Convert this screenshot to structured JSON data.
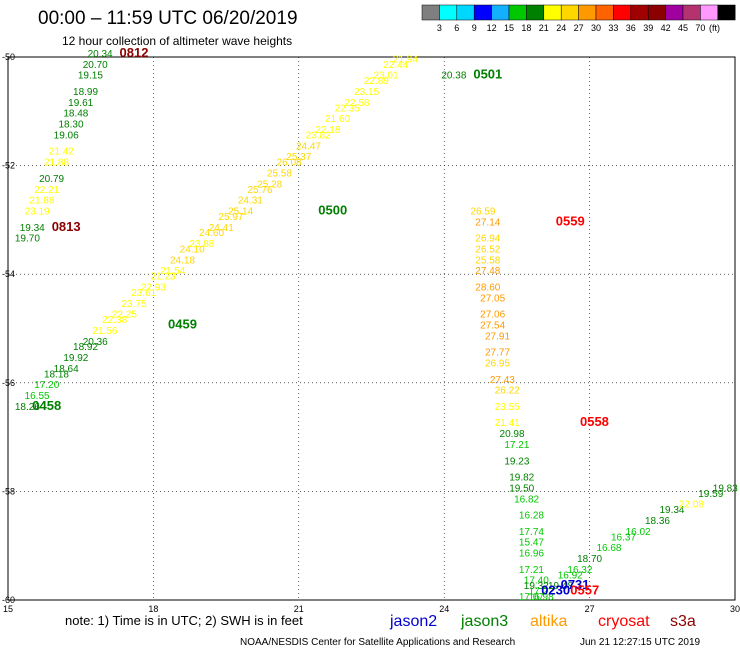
{
  "header": {
    "title": "00:00 – 11:59 UTC 06/20/2019",
    "subtitle": "12 hour collection of altimeter wave heights"
  },
  "colorbar": {
    "colors": [
      "#7f7f7f",
      "#00ffff",
      "#00d7ff",
      "#0000ff",
      "#14b0ff",
      "#00c800",
      "#008000",
      "#ffff00",
      "#ffd700",
      "#ff9900",
      "#ff6200",
      "#ff0000",
      "#a00000",
      "#8b0000",
      "#a000a0",
      "#b4326e",
      "#ff99ff",
      "#000000"
    ],
    "labels": [
      "3",
      "6",
      "9",
      "12",
      "15",
      "18",
      "21",
      "24",
      "27",
      "30",
      "33",
      "36",
      "39",
      "42",
      "45",
      "70"
    ],
    "unit": "(ft)"
  },
  "chart_data": {
    "type": "scatter",
    "xlim": [
      15,
      30
    ],
    "ylim": [
      -60,
      -50
    ],
    "x_ticks": [
      "15",
      "18",
      "21",
      "24",
      "27",
      "30"
    ],
    "y_ticks": [
      "-50",
      "-52",
      "-54",
      "-56",
      "-58",
      "-60"
    ],
    "grid": true,
    "legend": [
      {
        "name": "jason2",
        "color": "#0000cc"
      },
      {
        "name": "jason3",
        "color": "#008000"
      },
      {
        "name": "altika",
        "color": "#ff9900"
      },
      {
        "name": "cryosat",
        "color": "#ff0000"
      },
      {
        "name": "s3a",
        "color": "#8b0000"
      }
    ],
    "times": [
      {
        "label": "0812",
        "x": 17.6,
        "y": -50.0,
        "color": "#8b0000"
      },
      {
        "label": "0813",
        "x": 16.2,
        "y": -53.2,
        "color": "#8b0000"
      },
      {
        "label": "0501",
        "x": 24.9,
        "y": -50.4,
        "color": "#008000"
      },
      {
        "label": "0500",
        "x": 21.7,
        "y": -52.9,
        "color": "#008000"
      },
      {
        "label": "0459",
        "x": 18.6,
        "y": -55.0,
        "color": "#008000"
      },
      {
        "label": "0458",
        "x": 15.8,
        "y": -56.5,
        "color": "#008000"
      },
      {
        "label": "0559",
        "x": 26.6,
        "y": -53.1,
        "color": "#ff0000"
      },
      {
        "label": "0558",
        "x": 27.1,
        "y": -56.8,
        "color": "#ff0000"
      },
      {
        "label": "0731",
        "x": 26.7,
        "y": -59.8,
        "color": "#0000cc"
      },
      {
        "label": "0230",
        "x": 26.3,
        "y": -59.9,
        "color": "#0000cc"
      },
      {
        "label": "0557",
        "x": 26.9,
        "y": -59.9,
        "color": "#ff0000"
      }
    ],
    "points": [
      {
        "x": 16.9,
        "y": -50.0,
        "v": "20.34"
      },
      {
        "x": 16.8,
        "y": -50.2,
        "v": "20.70"
      },
      {
        "x": 16.7,
        "y": -50.4,
        "v": "19.15"
      },
      {
        "x": 16.6,
        "y": -50.7,
        "v": "18.99"
      },
      {
        "x": 16.5,
        "y": -50.9,
        "v": "19.61"
      },
      {
        "x": 16.4,
        "y": -51.1,
        "v": "18.48"
      },
      {
        "x": 16.3,
        "y": -51.3,
        "v": "18.30"
      },
      {
        "x": 16.2,
        "y": -51.5,
        "v": "19.06"
      },
      {
        "x": 16.1,
        "y": -51.8,
        "v": "21.42"
      },
      {
        "x": 16.0,
        "y": -52.0,
        "v": "21.88"
      },
      {
        "x": 15.9,
        "y": -52.3,
        "v": "20.79"
      },
      {
        "x": 15.8,
        "y": -52.5,
        "v": "22.21"
      },
      {
        "x": 15.7,
        "y": -52.7,
        "v": "21.88"
      },
      {
        "x": 15.6,
        "y": -52.9,
        "v": "23.19"
      },
      {
        "x": 15.5,
        "y": -53.2,
        "v": "19.34"
      },
      {
        "x": 15.4,
        "y": -53.4,
        "v": "19.70"
      },
      {
        "x": 15.4,
        "y": -56.5,
        "v": "18.26"
      },
      {
        "x": 15.6,
        "y": -56.3,
        "v": "16.55"
      },
      {
        "x": 15.8,
        "y": -56.1,
        "v": "17.20"
      },
      {
        "x": 16.0,
        "y": -55.9,
        "v": "18.18"
      },
      {
        "x": 16.2,
        "y": -55.8,
        "v": "18.64"
      },
      {
        "x": 16.4,
        "y": -55.6,
        "v": "19.92"
      },
      {
        "x": 16.6,
        "y": -55.4,
        "v": "18.92"
      },
      {
        "x": 16.8,
        "y": -55.3,
        "v": "20.36"
      },
      {
        "x": 17.0,
        "y": -55.1,
        "v": "21.56"
      },
      {
        "x": 17.2,
        "y": -54.9,
        "v": "22.38"
      },
      {
        "x": 17.4,
        "y": -54.8,
        "v": "22.25"
      },
      {
        "x": 17.6,
        "y": -54.6,
        "v": "23.75"
      },
      {
        "x": 17.8,
        "y": -54.4,
        "v": "23.61"
      },
      {
        "x": 18.0,
        "y": -54.3,
        "v": "22.93"
      },
      {
        "x": 18.2,
        "y": -54.1,
        "v": "21.23"
      },
      {
        "x": 18.4,
        "y": -54.0,
        "v": "21.54"
      },
      {
        "x": 18.6,
        "y": -53.8,
        "v": "24.18"
      },
      {
        "x": 18.8,
        "y": -53.6,
        "v": "24.10"
      },
      {
        "x": 19.0,
        "y": -53.5,
        "v": "23.88"
      },
      {
        "x": 19.2,
        "y": -53.3,
        "v": "24.60"
      },
      {
        "x": 19.4,
        "y": -53.2,
        "v": "24.41"
      },
      {
        "x": 19.6,
        "y": -53.0,
        "v": "25.97"
      },
      {
        "x": 19.8,
        "y": -52.9,
        "v": "25.14"
      },
      {
        "x": 20.0,
        "y": -52.7,
        "v": "24.31"
      },
      {
        "x": 20.2,
        "y": -52.5,
        "v": "25.76"
      },
      {
        "x": 20.4,
        "y": -52.4,
        "v": "25.28"
      },
      {
        "x": 20.6,
        "y": -52.2,
        "v": "25.58"
      },
      {
        "x": 20.8,
        "y": -52.0,
        "v": "26.08"
      },
      {
        "x": 21.0,
        "y": -51.9,
        "v": "25.37"
      },
      {
        "x": 21.2,
        "y": -51.7,
        "v": "24.47"
      },
      {
        "x": 21.4,
        "y": -51.5,
        "v": "23.82"
      },
      {
        "x": 21.6,
        "y": -51.4,
        "v": "22.18"
      },
      {
        "x": 21.8,
        "y": -51.2,
        "v": "21.60"
      },
      {
        "x": 22.0,
        "y": -51.0,
        "v": "22.35"
      },
      {
        "x": 22.2,
        "y": -50.9,
        "v": "22.58"
      },
      {
        "x": 22.4,
        "y": -50.7,
        "v": "23.15"
      },
      {
        "x": 22.6,
        "y": -50.5,
        "v": "22.89"
      },
      {
        "x": 22.8,
        "y": -50.4,
        "v": "23.01"
      },
      {
        "x": 23.0,
        "y": -50.2,
        "v": "22.44"
      },
      {
        "x": 23.2,
        "y": -50.1,
        "v": "21.94"
      },
      {
        "x": 24.2,
        "y": -50.4,
        "v": "20.38"
      },
      {
        "x": 24.8,
        "y": -52.9,
        "v": "26.59"
      },
      {
        "x": 24.9,
        "y": -53.1,
        "v": "27.14"
      },
      {
        "x": 24.9,
        "y": -53.4,
        "v": "26.94"
      },
      {
        "x": 24.9,
        "y": -53.6,
        "v": "26.52"
      },
      {
        "x": 24.9,
        "y": -53.8,
        "v": "25.58"
      },
      {
        "x": 24.9,
        "y": -54.0,
        "v": "27.48"
      },
      {
        "x": 24.9,
        "y": -54.3,
        "v": "28.60"
      },
      {
        "x": 25.0,
        "y": -54.5,
        "v": "27.05"
      },
      {
        "x": 25.0,
        "y": -54.8,
        "v": "27.06"
      },
      {
        "x": 25.0,
        "y": -55.0,
        "v": "27.54"
      },
      {
        "x": 25.1,
        "y": -55.2,
        "v": "27.91"
      },
      {
        "x": 25.1,
        "y": -55.5,
        "v": "27.77"
      },
      {
        "x": 25.1,
        "y": -55.7,
        "v": "26.95"
      },
      {
        "x": 25.2,
        "y": -56.0,
        "v": "27.43"
      },
      {
        "x": 25.3,
        "y": -56.2,
        "v": "26.22"
      },
      {
        "x": 25.3,
        "y": -56.5,
        "v": "23.55"
      },
      {
        "x": 25.3,
        "y": -56.8,
        "v": "21.41"
      },
      {
        "x": 25.4,
        "y": -57.0,
        "v": "20.98"
      },
      {
        "x": 25.5,
        "y": -57.2,
        "v": "17.21"
      },
      {
        "x": 25.5,
        "y": -57.5,
        "v": "19.23"
      },
      {
        "x": 25.6,
        "y": -57.8,
        "v": "19.82"
      },
      {
        "x": 25.6,
        "y": -58.0,
        "v": "19.50"
      },
      {
        "x": 25.7,
        "y": -58.2,
        "v": "16.82"
      },
      {
        "x": 25.8,
        "y": -58.5,
        "v": "16.28"
      },
      {
        "x": 25.8,
        "y": -58.8,
        "v": "17.74"
      },
      {
        "x": 25.8,
        "y": -59.0,
        "v": "15.47"
      },
      {
        "x": 25.8,
        "y": -59.2,
        "v": "16.96"
      },
      {
        "x": 25.8,
        "y": -59.5,
        "v": "17.21"
      },
      {
        "x": 25.9,
        "y": -59.7,
        "v": "17.40"
      },
      {
        "x": 25.9,
        "y": -59.8,
        "v": "19.32"
      },
      {
        "x": 26.0,
        "y": -59.9,
        "v": "17.22"
      },
      {
        "x": 26.0,
        "y": -60.0,
        "v": "16.98"
      },
      {
        "x": 25.8,
        "y": -60.0,
        "v": "17.07"
      },
      {
        "x": 26.4,
        "y": -59.8,
        "v": "19.48"
      },
      {
        "x": 26.6,
        "y": -59.6,
        "v": "16.92"
      },
      {
        "x": 26.8,
        "y": -59.5,
        "v": "16.32"
      },
      {
        "x": 27.0,
        "y": -59.3,
        "v": "18.70"
      },
      {
        "x": 27.4,
        "y": -59.1,
        "v": "16.68"
      },
      {
        "x": 27.7,
        "y": -58.9,
        "v": "16.37"
      },
      {
        "x": 28.0,
        "y": -58.8,
        "v": "16.02"
      },
      {
        "x": 28.4,
        "y": -58.6,
        "v": "18.36"
      },
      {
        "x": 28.7,
        "y": -58.4,
        "v": "19.34"
      },
      {
        "x": 29.1,
        "y": -58.3,
        "v": "22.08"
      },
      {
        "x": 29.5,
        "y": -58.1,
        "v": "19.59"
      },
      {
        "x": 29.8,
        "y": -58.0,
        "v": "19.83"
      }
    ]
  },
  "footer": {
    "note": "note: 1) Time is in UTC; 2) SWH is in feet",
    "credit": "NOAA/NESDIS Center for Satellite Applications and Research",
    "timestamp": "Jun 21 12:27:15 UTC 2019"
  }
}
